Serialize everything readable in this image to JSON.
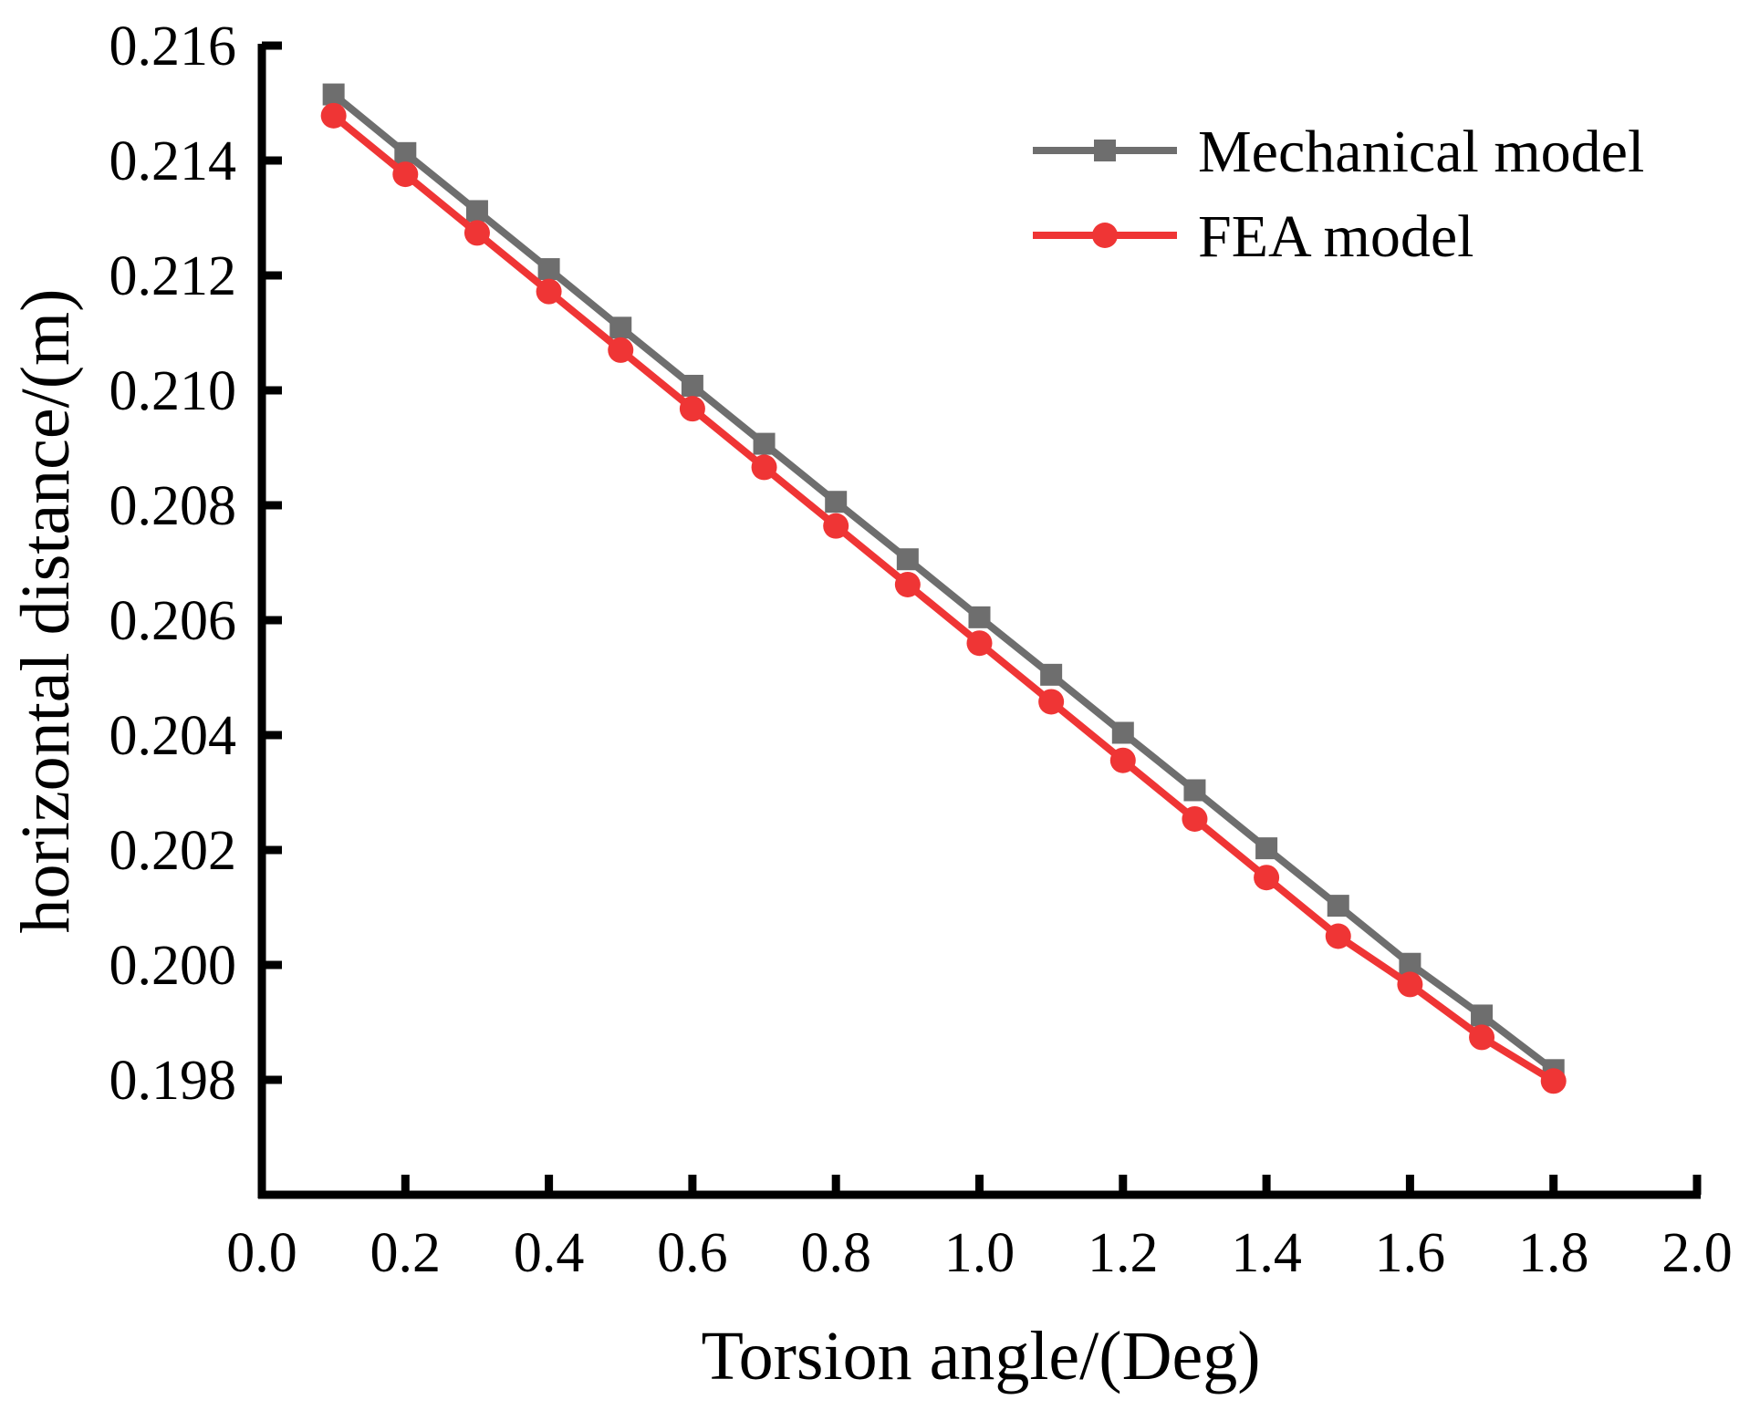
{
  "chart_data": {
    "type": "line",
    "xlabel": "Torsion angle/(Deg)",
    "ylabel": "horizontal distance/(m)",
    "xlim": [
      0.0,
      2.0
    ],
    "ylim": [
      0.196,
      0.216
    ],
    "x_ticks": [
      "0.0",
      "0.2",
      "0.4",
      "0.6",
      "0.8",
      "1.0",
      "1.2",
      "1.4",
      "1.6",
      "1.8",
      "2.0"
    ],
    "y_ticks": [
      "0.198",
      "0.200",
      "0.202",
      "0.204",
      "0.206",
      "0.208",
      "0.210",
      "0.212",
      "0.214",
      "0.216"
    ],
    "grid": false,
    "legend_position": "top-right",
    "x": [
      0.1,
      0.2,
      0.3,
      0.4,
      0.5,
      0.6,
      0.7,
      0.8,
      0.9,
      1.0,
      1.1,
      1.2,
      1.3,
      1.4,
      1.5,
      1.6,
      1.7,
      1.8
    ],
    "series": [
      {
        "name": "Mechanical model",
        "marker": "square",
        "color": "#6e6e6e",
        "values": [
          0.21515,
          0.21413,
          0.21312,
          0.21211,
          0.21109,
          0.21008,
          0.20907,
          0.20806,
          0.20706,
          0.20605,
          0.20505,
          0.20404,
          0.20304,
          0.20203,
          0.20103,
          0.20002,
          0.19912,
          0.19817
        ]
      },
      {
        "name": "FEA model",
        "marker": "circle",
        "color": "#ef3535",
        "values": [
          0.21478,
          0.21376,
          0.21274,
          0.21172,
          0.2107,
          0.20968,
          0.20866,
          0.20764,
          0.20662,
          0.2056,
          0.20458,
          0.20356,
          0.20254,
          0.20152,
          0.2005,
          0.19966,
          0.19874,
          0.19798
        ]
      }
    ]
  }
}
